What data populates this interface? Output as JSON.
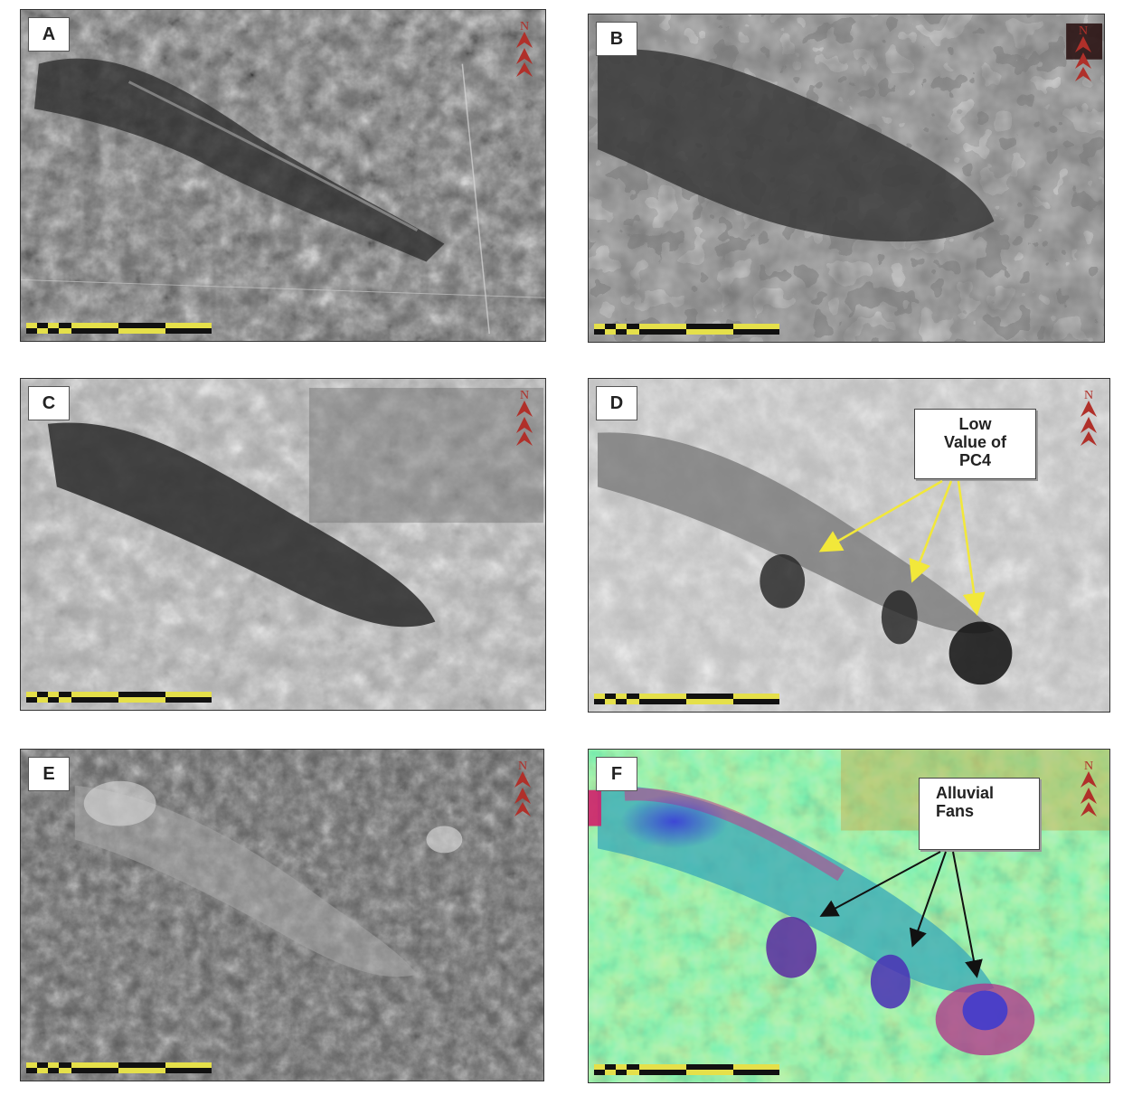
{
  "panels": [
    {
      "id": "A",
      "label": "A",
      "tone": "dark-gray"
    },
    {
      "id": "B",
      "label": "B",
      "tone": "dark-gray"
    },
    {
      "id": "C",
      "label": "C",
      "tone": "light-gray"
    },
    {
      "id": "D",
      "label": "D",
      "tone": "light-gray"
    },
    {
      "id": "E",
      "label": "E",
      "tone": "mid-gray"
    },
    {
      "id": "F",
      "label": "F",
      "tone": "false-color"
    }
  ],
  "annotations": {
    "d_callout": {
      "line1": "Low",
      "line2": "Value of",
      "line3": "PC4",
      "arrow_color": "#f2e83a"
    },
    "f_callout": {
      "line1": "Alluvial",
      "line2": "Fans",
      "arrow_color": "#111111"
    }
  },
  "north_arrow": {
    "letter": "N"
  },
  "colors": {
    "scalebar_yellow": "#e5e04a",
    "north_red": "#b0302a",
    "frame": "#333333"
  }
}
